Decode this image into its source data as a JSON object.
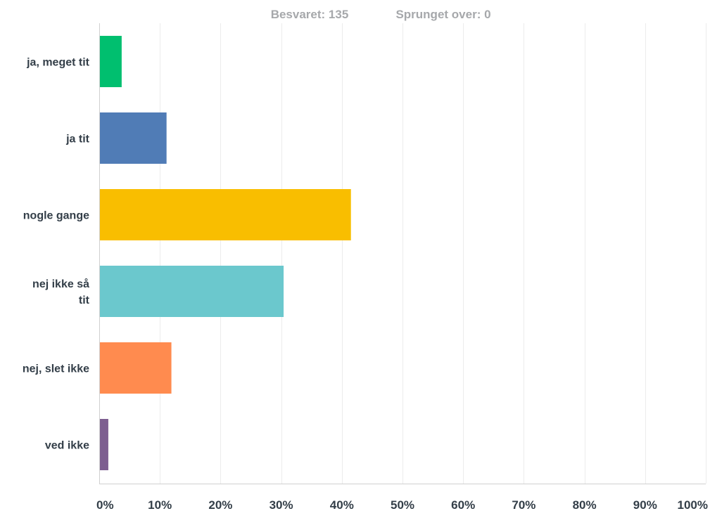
{
  "header": {
    "answered": "Besvaret: 135",
    "skipped": "Sprunget over: 0"
  },
  "chart_data": {
    "type": "bar",
    "orientation": "horizontal",
    "categories": [
      [
        "ja, meget tit"
      ],
      [
        "ja tit"
      ],
      [
        "nogle gange"
      ],
      [
        "nej ikke så",
        "tit"
      ],
      [
        "nej, slet ikke"
      ],
      [
        "ved ikke"
      ]
    ],
    "values": [
      3.7,
      11.1,
      41.5,
      30.4,
      11.9,
      1.5
    ],
    "colors": [
      "#00bf6f",
      "#507cb6",
      "#f9be00",
      "#6bc8cd",
      "#ff8b4f",
      "#7d5e90"
    ],
    "xlim": [
      0,
      100
    ],
    "x_ticks": [
      "0%",
      "10%",
      "20%",
      "30%",
      "40%",
      "50%",
      "60%",
      "70%",
      "80%",
      "90%",
      "100%"
    ],
    "grid": true,
    "legend": "none"
  }
}
